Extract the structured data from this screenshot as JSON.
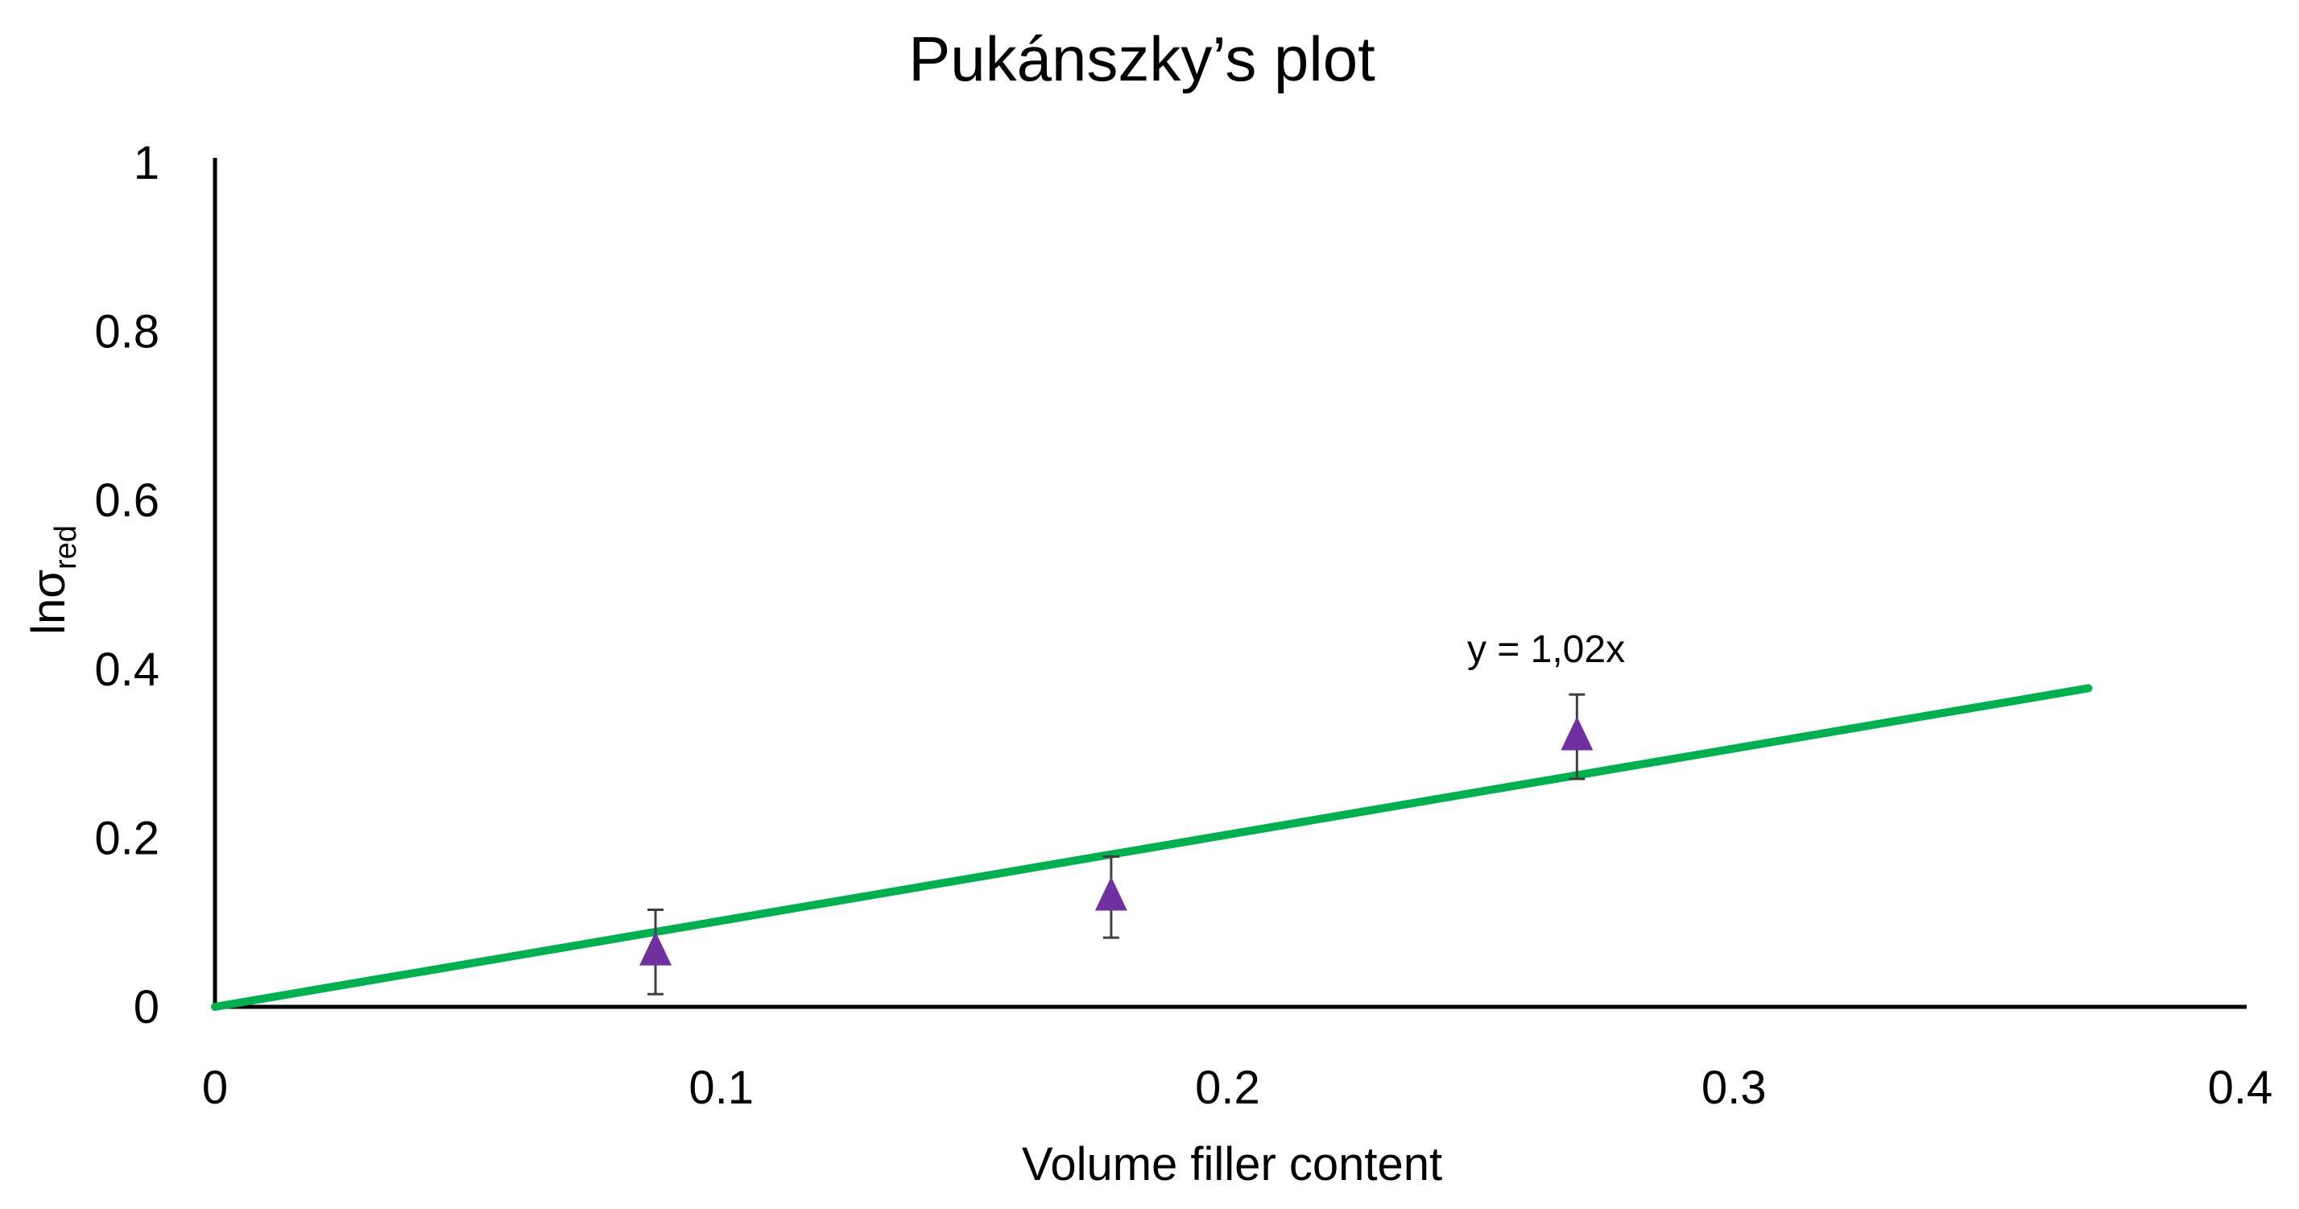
{
  "chart_data": {
    "type": "scatter",
    "title": "Pukánszky’s plot",
    "xlabel": "Volume filler content",
    "ylabel": {
      "main": "lnσ",
      "sub": "red"
    },
    "xlim": [
      0,
      0.4
    ],
    "ylim": [
      0,
      1
    ],
    "x_ticks": [
      "0",
      "0.1",
      "0.2",
      "0.3",
      "0.4"
    ],
    "y_ticks": [
      "0",
      "0.2",
      "0.4",
      "0.6",
      "0.8",
      "1"
    ],
    "grid": false,
    "series": [
      {
        "marker": "triangle",
        "color": "#7030A0",
        "points": [
          {
            "x": 0.087,
            "y": 0.065,
            "err_low": 0.05,
            "err_high": 0.05
          },
          {
            "x": 0.177,
            "y": 0.13,
            "err_low": 0.048,
            "err_high": 0.048
          },
          {
            "x": 0.269,
            "y": 0.32,
            "err_low": 0.05,
            "err_high": 0.05
          }
        ]
      }
    ],
    "trendline": {
      "color": "#00B050",
      "slope": 1.02,
      "intercept": 0,
      "x_start": 0,
      "x_end": 0.37,
      "equation": "y = 1,02x"
    }
  }
}
